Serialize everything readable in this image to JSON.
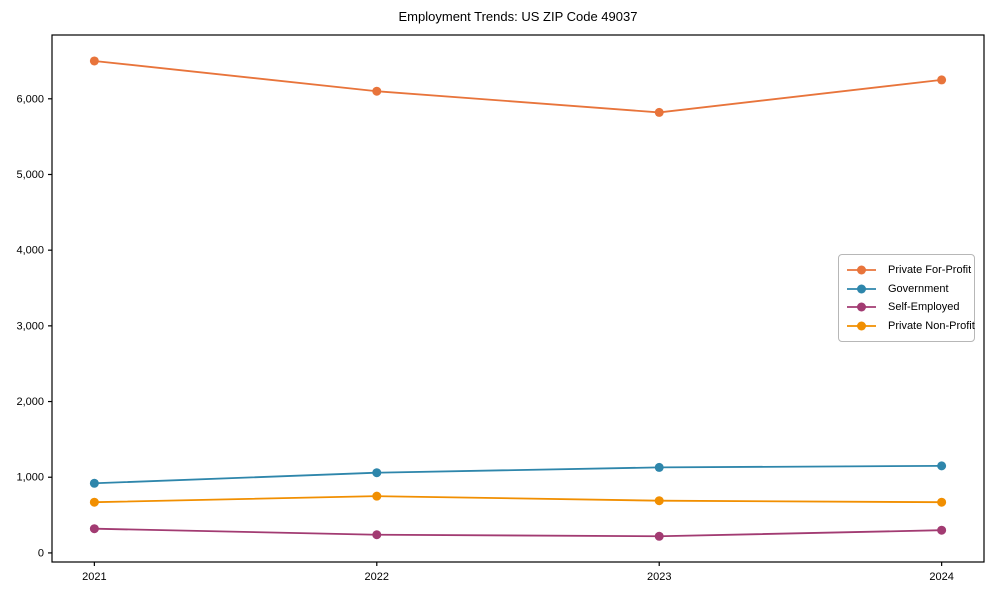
{
  "chart_data": {
    "type": "line",
    "title": "Employment Trends: US ZIP Code 49037",
    "xlabel": "",
    "ylabel": "",
    "categories": [
      2021,
      2022,
      2023,
      2024
    ],
    "x_tick_labels": [
      "2021",
      "2022",
      "2023",
      "2024"
    ],
    "y_ticks": [
      0,
      1000,
      2000,
      3000,
      4000,
      5000,
      6000
    ],
    "y_tick_labels": [
      "0",
      "1,000",
      "2,000",
      "3,000",
      "4,000",
      "5,000",
      "6,000"
    ],
    "xlim": [
      2020.85,
      2024.15
    ],
    "ylim": [
      -120,
      6843
    ],
    "grid": false,
    "legend_position": "center right",
    "marker": "circle",
    "line_width": 1.8,
    "marker_radius": 4.5,
    "axes_color": "#000000",
    "background_color": "#ffffff",
    "series": [
      {
        "name": "Private For-Profit",
        "color": "#E8743B",
        "values": [
          6500,
          6100,
          5820,
          6250
        ]
      },
      {
        "name": "Government",
        "color": "#2E86AB",
        "values": [
          920,
          1060,
          1130,
          1150
        ]
      },
      {
        "name": "Self-Employed",
        "color": "#A23B72",
        "values": [
          320,
          240,
          220,
          300
        ]
      },
      {
        "name": "Private Non-Profit",
        "color": "#F18F01",
        "values": [
          670,
          750,
          690,
          670
        ]
      }
    ]
  }
}
